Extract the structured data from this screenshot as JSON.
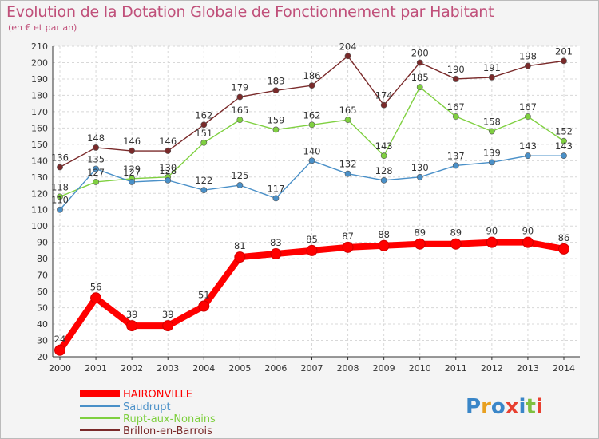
{
  "title": "Evolution de la Dotation Globale de Fonctionnement par Habitant",
  "subtitle": "(en € et par an)",
  "logo_text": "Proxiti",
  "colors": {
    "background": "#f4f4f4",
    "plot_background": "#ffffff",
    "title": "#c0507a",
    "axis": "#333333",
    "grid": "#d8d8d8"
  },
  "chart_data": {
    "type": "line",
    "title": "Evolution de la Dotation Globale de Fonctionnement par Habitant",
    "subtitle": "(en € et par an)",
    "xlabel": "",
    "ylabel": "",
    "x": [
      2000,
      2001,
      2002,
      2003,
      2004,
      2005,
      2006,
      2007,
      2008,
      2009,
      2010,
      2011,
      2012,
      2013,
      2014
    ],
    "ylim": [
      20,
      210
    ],
    "yticks": [
      20,
      30,
      40,
      50,
      60,
      70,
      80,
      90,
      100,
      110,
      120,
      130,
      140,
      150,
      160,
      170,
      180,
      190,
      200,
      210
    ],
    "grid": true,
    "legend_position": "bottom-left",
    "series": [
      {
        "name": "HAIRONVILLE",
        "color": "#ff0000",
        "values": [
          24,
          56,
          39,
          39,
          51,
          81,
          83,
          85,
          87,
          88,
          89,
          89,
          90,
          90,
          86
        ],
        "labels": [
          "24",
          "56",
          "39",
          "39",
          "51",
          "81",
          "83",
          "85",
          "87",
          "88",
          "89",
          "89",
          "90",
          "90",
          "86"
        ]
      },
      {
        "name": "Saudrupt",
        "color": "#4a90c8",
        "values": [
          110,
          135,
          127,
          128,
          122,
          125,
          117,
          140,
          132,
          128,
          130,
          137,
          139,
          143,
          143
        ],
        "labels": [
          "110",
          "135",
          "127",
          "128",
          "122",
          "125",
          "117",
          "140",
          "132",
          "128",
          "130",
          "137",
          "139",
          "143",
          "143"
        ]
      },
      {
        "name": "Rupt-aux-Nonains",
        "color": "#7fd040",
        "values": [
          118,
          127,
          129,
          130,
          151,
          165,
          159,
          162,
          165,
          143,
          185,
          167,
          158,
          167,
          152
        ],
        "labels": [
          "118",
          "127",
          "129",
          "130",
          "151",
          "165",
          "159",
          "162",
          "165",
          "143",
          "185",
          "167",
          "158",
          "167",
          "152"
        ]
      },
      {
        "name": "Brillon-en-Barrois",
        "color": "#7a2a2a",
        "values": [
          136,
          148,
          146,
          146,
          162,
          179,
          183,
          186,
          204,
          174,
          200,
          190,
          191,
          198,
          201
        ],
        "labels": [
          "136",
          "148",
          "146",
          "146",
          "162",
          "179",
          "183",
          "186",
          "204",
          "174",
          "200",
          "190",
          "191",
          "198",
          "201"
        ]
      }
    ]
  }
}
